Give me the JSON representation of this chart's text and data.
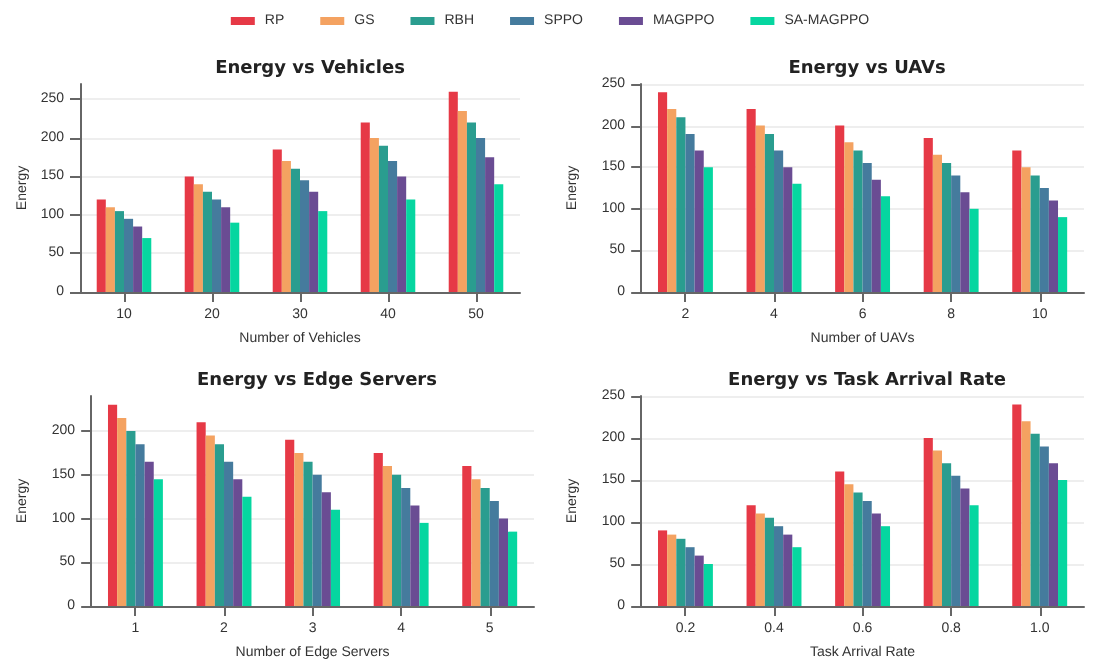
{
  "chart_data": [
    {
      "type": "bar",
      "title": "Energy vs Vehicles",
      "xlabel": "Number of Vehicles",
      "ylabel": "Energy",
      "categories": [
        "10",
        "20",
        "30",
        "40",
        "50"
      ],
      "ylim": [
        0,
        270
      ],
      "yticks": [
        0,
        50,
        100,
        150,
        200,
        250
      ],
      "grid": "y",
      "legend": "top",
      "series": [
        {
          "name": "RP",
          "color": "#e63946",
          "values": [
            120,
            150,
            185,
            220,
            260
          ]
        },
        {
          "name": "GS",
          "color": "#f4a261",
          "values": [
            110,
            140,
            170,
            200,
            235
          ]
        },
        {
          "name": "RBH",
          "color": "#2a9d8f",
          "values": [
            105,
            130,
            160,
            190,
            220
          ]
        },
        {
          "name": "SPPO",
          "color": "#457b9d",
          "values": [
            95,
            120,
            145,
            170,
            200
          ]
        },
        {
          "name": "MAGPPO",
          "color": "#6a4c93",
          "values": [
            85,
            110,
            130,
            150,
            175
          ]
        },
        {
          "name": "SA-MAGPPO",
          "color": "#06d6a0",
          "values": [
            70,
            90,
            105,
            120,
            140
          ]
        }
      ]
    },
    {
      "type": "bar",
      "title": "Energy vs UAVs",
      "xlabel": "Number of UAVs",
      "ylabel": "Energy",
      "categories": [
        "2",
        "4",
        "6",
        "8",
        "10"
      ],
      "ylim": [
        0,
        250
      ],
      "yticks": [
        0,
        50,
        100,
        150,
        200,
        250
      ],
      "grid": "y",
      "series": [
        {
          "color": "#e63946",
          "values": [
            240,
            220,
            200,
            185,
            170
          ]
        },
        {
          "color": "#f4a261",
          "values": [
            220,
            200,
            180,
            165,
            150
          ]
        },
        {
          "color": "#2a9d8f",
          "values": [
            210,
            190,
            170,
            155,
            140
          ]
        },
        {
          "color": "#457b9d",
          "values": [
            190,
            170,
            155,
            140,
            125
          ]
        },
        {
          "color": "#6a4c93",
          "values": [
            170,
            150,
            135,
            120,
            110
          ]
        },
        {
          "color": "#06d6a0",
          "values": [
            150,
            130,
            115,
            100,
            90
          ]
        }
      ]
    },
    {
      "type": "bar",
      "title": "Energy vs Edge Servers",
      "xlabel": "Number of Edge Servers",
      "ylabel": "Energy",
      "categories": [
        "1",
        "2",
        "3",
        "4",
        "5"
      ],
      "ylim": [
        0,
        240
      ],
      "yticks": [
        0,
        50,
        100,
        150,
        200
      ],
      "grid": "y",
      "series": [
        {
          "color": "#e63946",
          "values": [
            230,
            210,
            190,
            175,
            160
          ]
        },
        {
          "color": "#f4a261",
          "values": [
            215,
            195,
            175,
            160,
            145
          ]
        },
        {
          "color": "#2a9d8f",
          "values": [
            200,
            185,
            165,
            150,
            135
          ]
        },
        {
          "color": "#457b9d",
          "values": [
            185,
            165,
            150,
            135,
            120
          ]
        },
        {
          "color": "#6a4c93",
          "values": [
            165,
            145,
            130,
            115,
            100
          ]
        },
        {
          "color": "#06d6a0",
          "values": [
            145,
            125,
            110,
            95,
            85
          ]
        }
      ]
    },
    {
      "type": "bar",
      "title": "Energy vs Task Arrival Rate",
      "xlabel": "Task Arrival Rate",
      "ylabel": "Energy",
      "categories": [
        "0.2",
        "0.4",
        "0.6",
        "0.8",
        "1.0"
      ],
      "ylim": [
        0,
        250
      ],
      "yticks": [
        0,
        50,
        100,
        150,
        200,
        250
      ],
      "grid": "y",
      "series": [
        {
          "color": "#e63946",
          "values": [
            90,
            120,
            160,
            200,
            240
          ]
        },
        {
          "color": "#f4a261",
          "values": [
            85,
            110,
            145,
            185,
            220
          ]
        },
        {
          "color": "#2a9d8f",
          "values": [
            80,
            105,
            135,
            170,
            205
          ]
        },
        {
          "color": "#457b9d",
          "values": [
            70,
            95,
            125,
            155,
            190
          ]
        },
        {
          "color": "#6a4c93",
          "values": [
            60,
            85,
            110,
            140,
            170
          ]
        },
        {
          "color": "#06d6a0",
          "values": [
            50,
            70,
            95,
            120,
            150
          ]
        }
      ]
    }
  ]
}
